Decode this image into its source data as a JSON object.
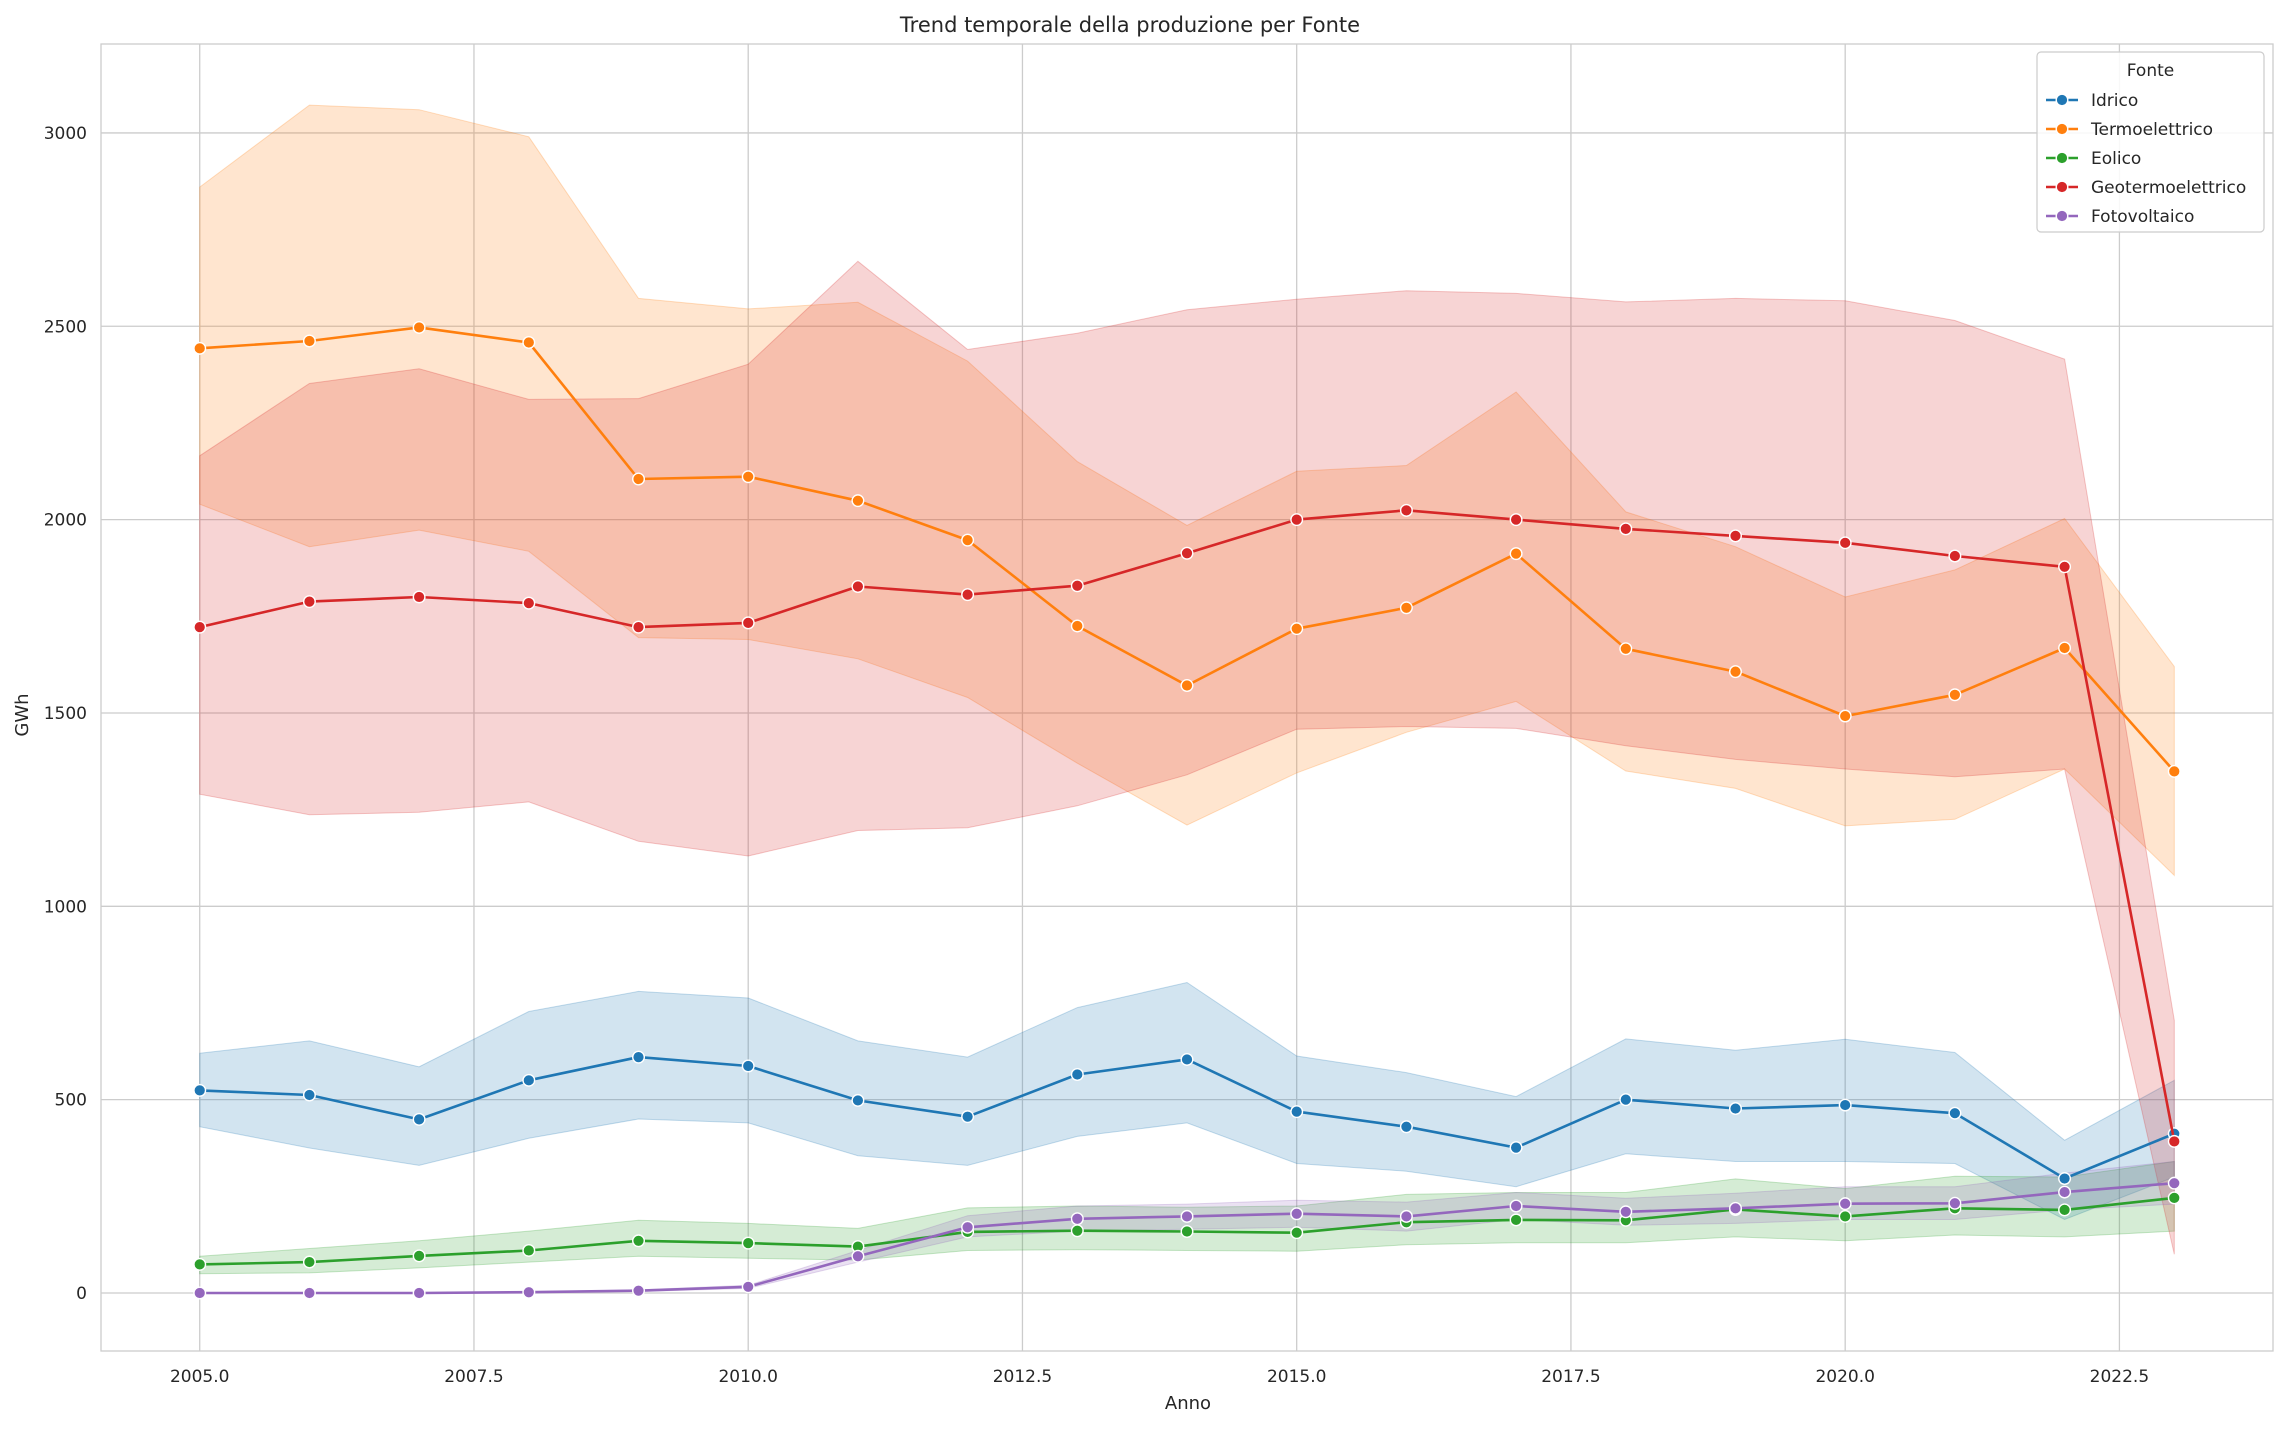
{
  "chart_data": {
    "type": "line",
    "title": "Trend temporale della produzione per Fonte",
    "xlabel": "Anno",
    "ylabel": "GWh",
    "xlim": [
      2004.1,
      2023.9
    ],
    "ylim": [
      -150,
      3230
    ],
    "x_ticks": [
      2005.0,
      2007.5,
      2010.0,
      2012.5,
      2015.0,
      2017.5,
      2020.0,
      2022.5
    ],
    "x_tick_labels": [
      "2005.0",
      "2007.5",
      "2010.0",
      "2012.5",
      "2015.0",
      "2017.5",
      "2020.0",
      "2022.5"
    ],
    "y_ticks": [
      0,
      500,
      1000,
      1500,
      2000,
      2500,
      3000
    ],
    "y_tick_labels": [
      "0",
      "500",
      "1000",
      "1500",
      "2000",
      "2500",
      "3000"
    ],
    "grid": true,
    "legend": {
      "title": "Fonte",
      "position": "top-right"
    },
    "x": [
      2005,
      2006,
      2007,
      2008,
      2009,
      2010,
      2011,
      2012,
      2013,
      2014,
      2015,
      2016,
      2017,
      2018,
      2019,
      2020,
      2021,
      2022,
      2023
    ],
    "series": [
      {
        "name": "Idrico",
        "color": "#1f77b4",
        "values": [
          524,
          512,
          449,
          550,
          610,
          587,
          498,
          456,
          565,
          604,
          469,
          430,
          376,
          500,
          477,
          486,
          465,
          296,
          412
        ],
        "ci_low": [
          430,
          375,
          330,
          400,
          450,
          440,
          355,
          330,
          405,
          440,
          335,
          315,
          275,
          360,
          340,
          340,
          335,
          190,
          300
        ],
        "ci_high": [
          620,
          652,
          585,
          728,
          780,
          763,
          652,
          610,
          738,
          803,
          613,
          570,
          508,
          657,
          628,
          656,
          622,
          395,
          550
        ]
      },
      {
        "name": "Termoelettrico",
        "color": "#ff7f0e",
        "values": [
          2443,
          2462,
          2497,
          2458,
          2105,
          2111,
          2049,
          1947,
          1725,
          1571,
          1718,
          1772,
          1912,
          1666,
          1607,
          1492,
          1547,
          1668,
          1349
        ],
        "ci_low": [
          2040,
          1930,
          1973,
          1918,
          1695,
          1690,
          1640,
          1540,
          1370,
          1210,
          1345,
          1450,
          1530,
          1350,
          1305,
          1208,
          1225,
          1355,
          1080
        ],
        "ci_high": [
          2860,
          3072,
          3060,
          2990,
          2572,
          2545,
          2562,
          2410,
          2150,
          1985,
          2125,
          2140,
          2330,
          2020,
          1930,
          1800,
          1870,
          2003,
          1620
        ]
      },
      {
        "name": "Eolico",
        "color": "#2ca02c",
        "values": [
          74,
          80,
          96,
          110,
          135,
          129,
          120,
          158,
          161,
          159,
          156,
          183,
          189,
          188,
          216,
          198,
          219,
          215,
          246
        ],
        "ci_low": [
          50,
          52,
          65,
          80,
          95,
          90,
          85,
          110,
          112,
          110,
          108,
          125,
          130,
          130,
          145,
          135,
          150,
          145,
          160
        ],
        "ci_high": [
          95,
          115,
          135,
          160,
          188,
          180,
          167,
          220,
          225,
          222,
          225,
          255,
          260,
          260,
          295,
          270,
          302,
          300,
          340
        ]
      },
      {
        "name": "Geotermoelettrico",
        "color": "#d62728",
        "values": [
          1722,
          1788,
          1800,
          1784,
          1722,
          1733,
          1827,
          1806,
          1829,
          1913,
          2000,
          2024,
          2000,
          1976,
          1958,
          1940,
          1906,
          1878,
          392
        ],
        "ci_low": [
          1290,
          1237,
          1243,
          1270,
          1168,
          1130,
          1196,
          1203,
          1260,
          1340,
          1458,
          1465,
          1460,
          1415,
          1380,
          1355,
          1335,
          1355,
          100
        ],
        "ci_high": [
          2165,
          2352,
          2390,
          2311,
          2313,
          2402,
          2668,
          2440,
          2482,
          2543,
          2570,
          2592,
          2585,
          2563,
          2572,
          2566,
          2515,
          2415,
          705
        ]
      },
      {
        "name": "Fotovoltaico",
        "color": "#9467bd",
        "values": [
          0,
          0,
          0,
          2,
          6,
          16,
          95,
          170,
          192,
          198,
          205,
          198,
          225,
          210,
          219,
          231,
          232,
          261,
          284
        ],
        "ci_low": [
          0,
          0,
          0,
          1,
          4,
          12,
          80,
          145,
          160,
          165,
          170,
          160,
          190,
          175,
          180,
          190,
          190,
          215,
          230
        ],
        "ci_high": [
          0,
          0,
          0,
          3,
          8,
          20,
          110,
          200,
          225,
          230,
          240,
          235,
          260,
          245,
          258,
          275,
          275,
          310,
          340
        ]
      }
    ]
  }
}
